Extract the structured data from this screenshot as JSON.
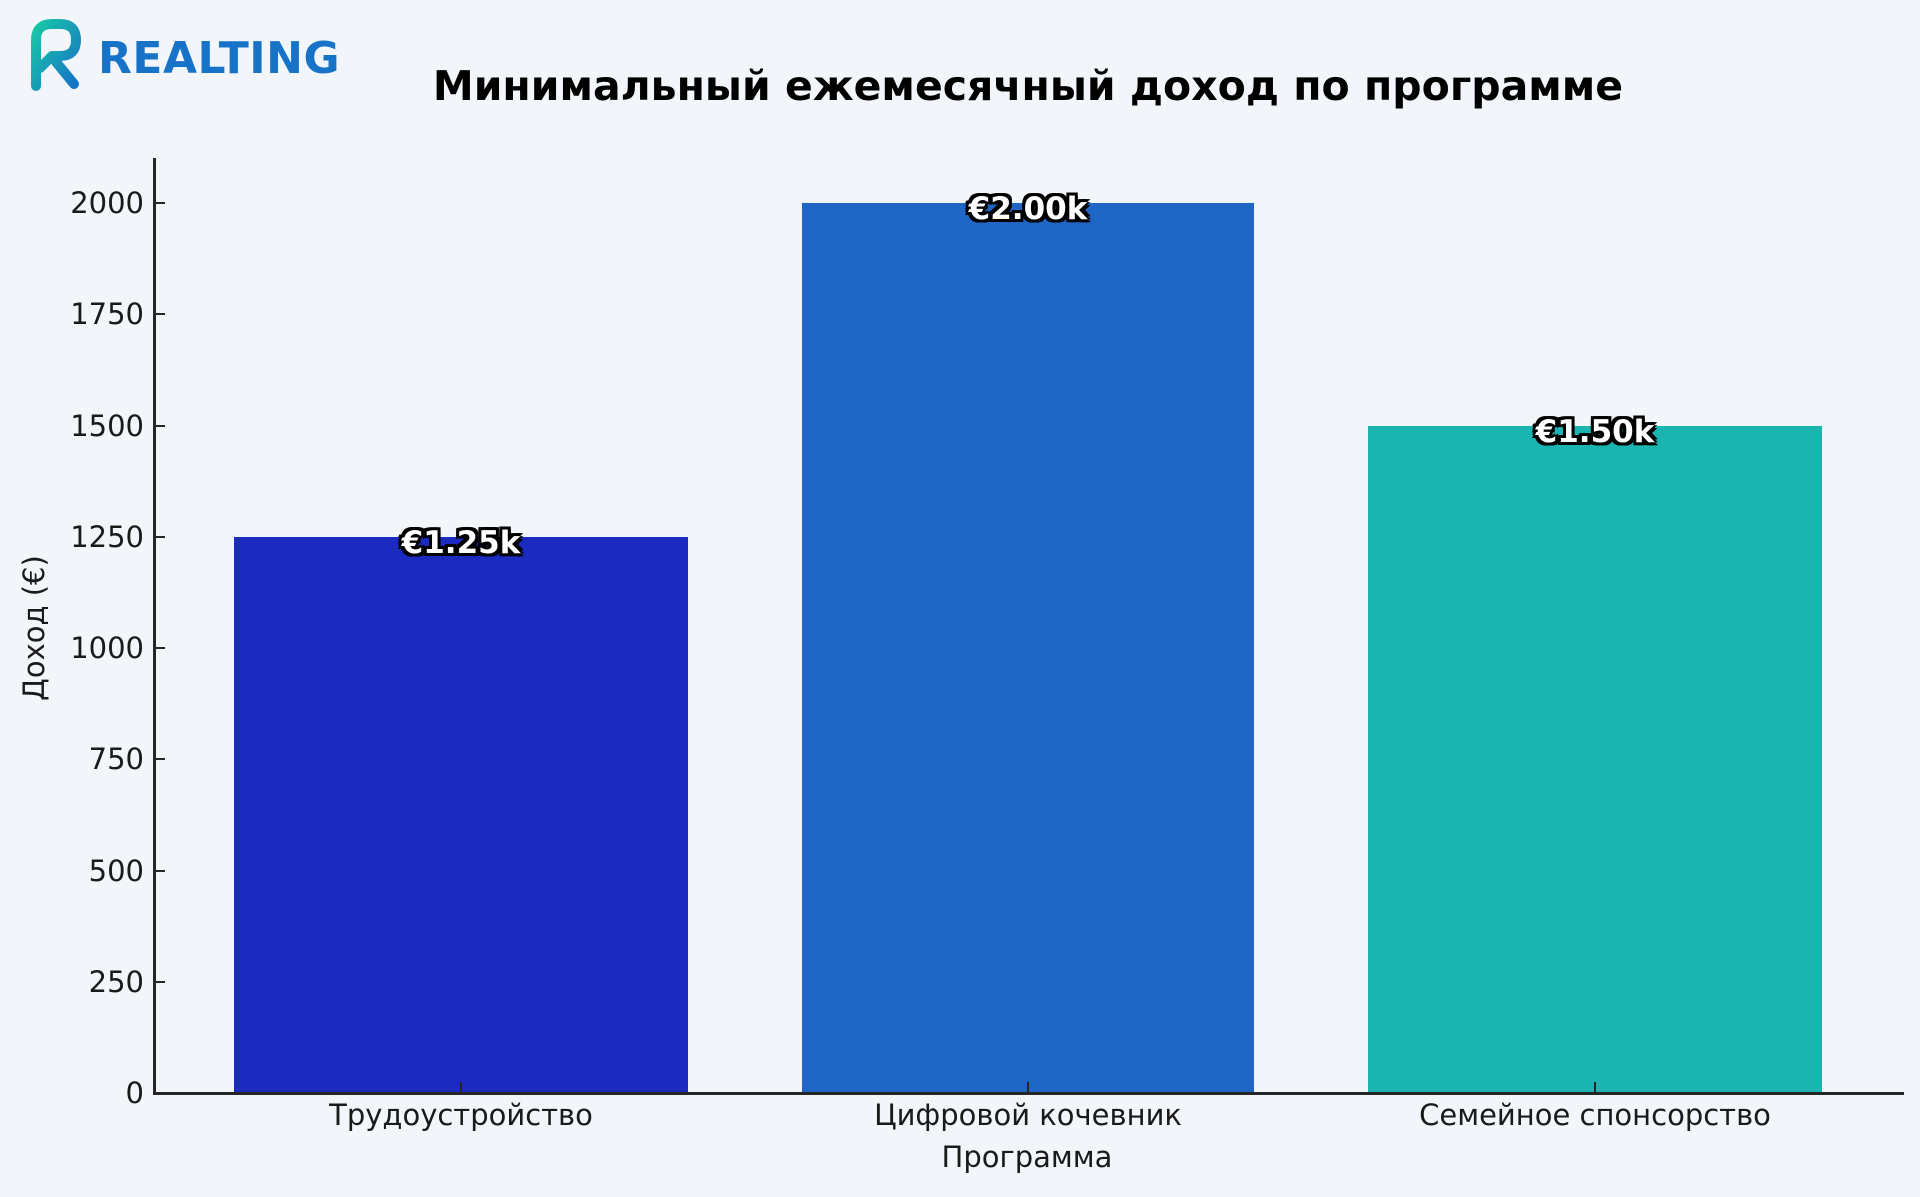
{
  "logo": {
    "text": "REALTING",
    "icon": "realting-r-logo-icon"
  },
  "colors": {
    "background": "#f2f6fa",
    "logo_text": "#1673c8",
    "bar_1": "#1c2bbf",
    "bar_2": "#1f66c6",
    "bar_3": "#1bb5b1"
  },
  "chart_data": {
    "type": "bar",
    "title": "Минимальный ежемесячный доход по программе",
    "xlabel": "Программа",
    "ylabel": "Доход (€)",
    "categories": [
      "Трудоустройство",
      "Цифровой кочевник",
      "Семейное спонсорство"
    ],
    "values": [
      1250,
      2000,
      1500
    ],
    "value_labels": [
      "€1.25k",
      "€2.00k",
      "€1.50k"
    ],
    "bar_colors": [
      "#1c2bbf",
      "#1f66c6",
      "#1bb5b1"
    ],
    "yticks": [
      0,
      250,
      500,
      750,
      1000,
      1250,
      1500,
      1750,
      2000
    ],
    "ylim": [
      0,
      2100
    ],
    "grid": false,
    "legend": null
  }
}
